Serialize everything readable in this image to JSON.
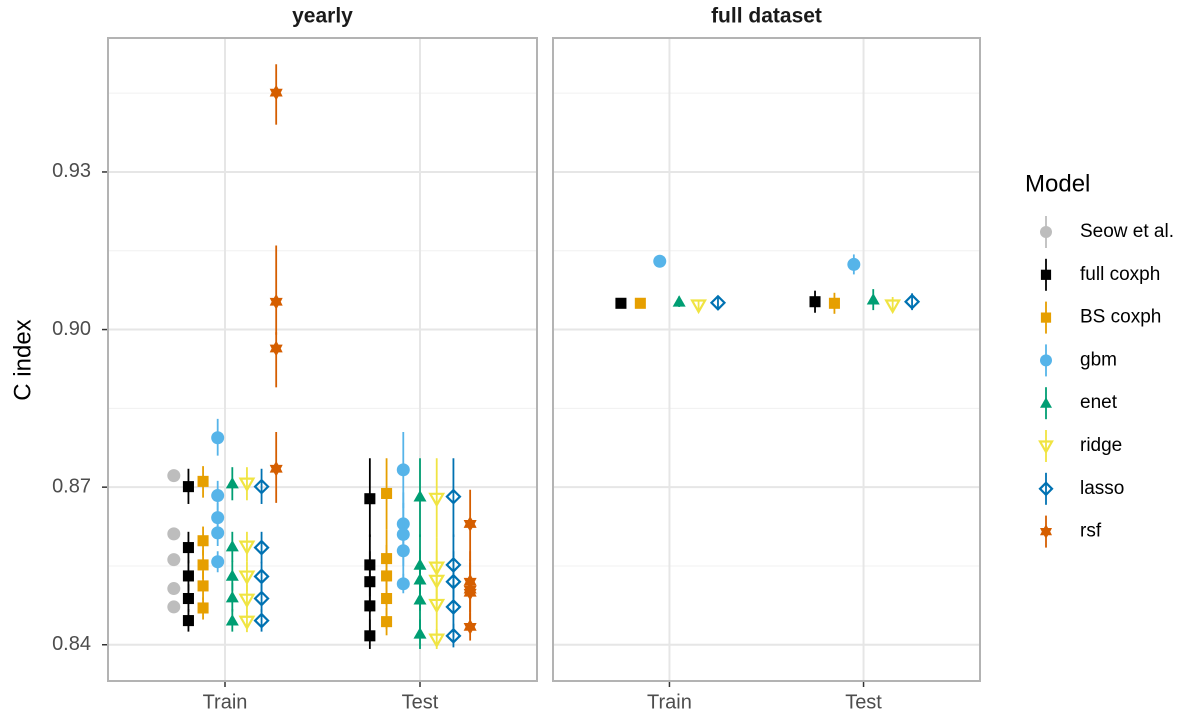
{
  "chart_data": [
    {
      "type": "point",
      "title": "yearly",
      "y_label": "C index",
      "legend_title": "Model",
      "categories": [
        "Train",
        "Test"
      ],
      "ylim": [
        0.8331,
        0.9555
      ],
      "yticks": [
        0.84,
        0.87,
        {
          "value": 0.9,
          "label": "0.90"
        },
        0.93
      ],
      "minor_yticks": [
        0.855,
        0.885,
        0.915,
        0.945
      ],
      "grid": true,
      "series": [
        {
          "name": "Seow et al.",
          "color": "#bdbdbd",
          "shape": "circle",
          "x": [
            "Train",
            "Train",
            "Train",
            "Train",
            "Train"
          ],
          "values": [
            0.8722,
            0.8611,
            0.8562,
            0.8507,
            0.8472
          ],
          "lower": [
            0.8714,
            0.8604,
            0.8555,
            0.85,
            0.8465
          ],
          "upper": [
            0.873,
            0.8618,
            0.8569,
            0.8514,
            0.8479
          ]
        },
        {
          "name": "full coxph",
          "color": "#000000",
          "shape": "square",
          "x": [
            "Train",
            "Train",
            "Train",
            "Train",
            "Train",
            "Test",
            "Test",
            "Test",
            "Test",
            "Test"
          ],
          "values": [
            0.8701,
            0.8585,
            0.8531,
            0.8488,
            0.8446,
            0.8678,
            0.8552,
            0.852,
            0.8474,
            0.8417
          ],
          "lower": [
            0.8668,
            0.8555,
            0.8503,
            0.8462,
            0.8425,
            0.8605,
            0.8492,
            0.8462,
            0.8415,
            0.8392
          ],
          "upper": [
            0.8735,
            0.8615,
            0.8561,
            0.8515,
            0.8468,
            0.8755,
            0.861,
            0.8578,
            0.8532,
            0.8448
          ]
        },
        {
          "name": "BS coxph",
          "color": "#E69F00",
          "shape": "square",
          "x": [
            "Train",
            "Train",
            "Train",
            "Train",
            "Train",
            "Test",
            "Test",
            "Test",
            "Test",
            "Test"
          ],
          "values": [
            0.8711,
            0.8598,
            0.8552,
            0.8512,
            0.847,
            0.8688,
            0.8564,
            0.8531,
            0.8488,
            0.8444
          ],
          "lower": [
            0.868,
            0.857,
            0.8525,
            0.8485,
            0.8448,
            0.862,
            0.8505,
            0.8475,
            0.843,
            0.8418
          ],
          "upper": [
            0.874,
            0.8625,
            0.858,
            0.854,
            0.849,
            0.8755,
            0.862,
            0.859,
            0.8545,
            0.847
          ]
        },
        {
          "name": "gbm",
          "color": "#56B4E9",
          "shape": "circle",
          "x": [
            "Train",
            "Train",
            "Train",
            "Train",
            "Train",
            "Test",
            "Test",
            "Test",
            "Test",
            "Test"
          ],
          "values": [
            0.8794,
            0.8684,
            0.8642,
            0.8613,
            0.8558,
            0.8733,
            0.863,
            0.861,
            0.8579,
            0.8516
          ],
          "lower": [
            0.876,
            0.8655,
            0.8615,
            0.8588,
            0.8538,
            0.866,
            0.857,
            0.855,
            0.852,
            0.8498
          ],
          "upper": [
            0.883,
            0.8712,
            0.867,
            0.8638,
            0.8578,
            0.8805,
            0.869,
            0.867,
            0.8638,
            0.8535
          ]
        },
        {
          "name": "enet",
          "color": "#009E73",
          "shape": "triangle",
          "x": [
            "Train",
            "Train",
            "Train",
            "Train",
            "Train",
            "Test",
            "Test",
            "Test",
            "Test",
            "Test"
          ],
          "values": [
            0.8707,
            0.8587,
            0.8531,
            0.849,
            0.8446,
            0.8682,
            0.8552,
            0.8524,
            0.8486,
            0.8421
          ],
          "lower": [
            0.8675,
            0.8558,
            0.8503,
            0.8463,
            0.8425,
            0.8605,
            0.849,
            0.8465,
            0.8428,
            0.8392
          ],
          "upper": [
            0.8738,
            0.8615,
            0.856,
            0.8518,
            0.8468,
            0.8755,
            0.861,
            0.858,
            0.8545,
            0.8448
          ]
        },
        {
          "name": "ridge",
          "color": "#F0E442",
          "shape": "triangle-down",
          "x": [
            "Train",
            "Train",
            "Train",
            "Train",
            "Train",
            "Test",
            "Test",
            "Test",
            "Test",
            "Test"
          ],
          "values": [
            0.8707,
            0.8587,
            0.853,
            0.8486,
            0.8444,
            0.8678,
            0.8547,
            0.8522,
            0.8476,
            0.841
          ],
          "lower": [
            0.8675,
            0.8558,
            0.8502,
            0.846,
            0.8424,
            0.8605,
            0.8488,
            0.8463,
            0.8418,
            0.8392
          ],
          "upper": [
            0.8738,
            0.8615,
            0.8558,
            0.8514,
            0.8465,
            0.8755,
            0.8605,
            0.858,
            0.8535,
            0.843
          ]
        },
        {
          "name": "lasso",
          "color": "#0072B2",
          "shape": "diamond",
          "x": [
            "Train",
            "Train",
            "Train",
            "Train",
            "Train",
            "Test",
            "Test",
            "Test",
            "Test",
            "Test"
          ],
          "values": [
            0.8701,
            0.8585,
            0.853,
            0.8488,
            0.8446,
            0.8682,
            0.8552,
            0.852,
            0.8472,
            0.8417
          ],
          "lower": [
            0.8668,
            0.8555,
            0.8502,
            0.8462,
            0.8425,
            0.8605,
            0.849,
            0.8462,
            0.8414,
            0.8395
          ],
          "upper": [
            0.8735,
            0.8615,
            0.8558,
            0.8515,
            0.8468,
            0.8755,
            0.861,
            0.8578,
            0.853,
            0.844
          ]
        },
        {
          "name": "rsf",
          "color": "#D55E00",
          "shape": "star",
          "x": [
            "Train",
            "Train",
            "Train",
            "Train",
            "Test",
            "Test",
            "Test",
            "Test",
            "Test"
          ],
          "values": [
            0.9451,
            0.9053,
            0.8964,
            0.8735,
            0.863,
            0.852,
            0.8505,
            0.8499,
            0.8434
          ],
          "lower": [
            0.939,
            0.899,
            0.889,
            0.867,
            0.856,
            0.8462,
            0.8448,
            0.8442,
            0.8408
          ],
          "upper": [
            0.9505,
            0.916,
            0.8995,
            0.8805,
            0.8695,
            0.8578,
            0.8562,
            0.8556,
            0.846
          ]
        }
      ]
    },
    {
      "type": "point",
      "title": "full dataset",
      "categories": [
        "Train",
        "Test"
      ],
      "ylim": [
        0.8331,
        0.9555
      ],
      "yticks": [
        0.84,
        0.87,
        0.9,
        0.93
      ],
      "minor_yticks": [
        0.855,
        0.885,
        0.915,
        0.945
      ],
      "grid": true,
      "series": [
        {
          "name": "full coxph",
          "color": "#000000",
          "shape": "square",
          "x": [
            "Train",
            "Test"
          ],
          "values": [
            0.905,
            0.9053
          ],
          "lower": [
            0.9042,
            0.9032
          ],
          "upper": [
            0.9058,
            0.9074
          ]
        },
        {
          "name": "BS coxph",
          "color": "#E69F00",
          "shape": "square",
          "x": [
            "Train",
            "Test"
          ],
          "values": [
            0.905,
            0.905
          ],
          "lower": [
            0.9043,
            0.903
          ],
          "upper": [
            0.9057,
            0.907
          ]
        },
        {
          "name": "gbm",
          "color": "#56B4E9",
          "shape": "circle",
          "x": [
            "Train",
            "Test"
          ],
          "values": [
            0.913,
            0.9124
          ],
          "lower": [
            0.9124,
            0.9105
          ],
          "upper": [
            0.9136,
            0.9143
          ]
        },
        {
          "name": "enet",
          "color": "#009E73",
          "shape": "triangle",
          "x": [
            "Train",
            "Test"
          ],
          "values": [
            0.9053,
            0.9057
          ],
          "lower": [
            0.9043,
            0.9037
          ],
          "upper": [
            0.9063,
            0.9077
          ]
        },
        {
          "name": "ridge",
          "color": "#F0E442",
          "shape": "triangle-down",
          "x": [
            "Train",
            "Test"
          ],
          "values": [
            0.9046,
            0.9046
          ],
          "lower": [
            0.9038,
            0.9036
          ],
          "upper": [
            0.9056,
            0.9062
          ]
        },
        {
          "name": "lasso",
          "color": "#0072B2",
          "shape": "diamond",
          "x": [
            "Train",
            "Test"
          ],
          "values": [
            0.9051,
            0.9053
          ],
          "lower": [
            0.9041,
            0.9037
          ],
          "upper": [
            0.9061,
            0.9069
          ]
        }
      ]
    }
  ]
}
